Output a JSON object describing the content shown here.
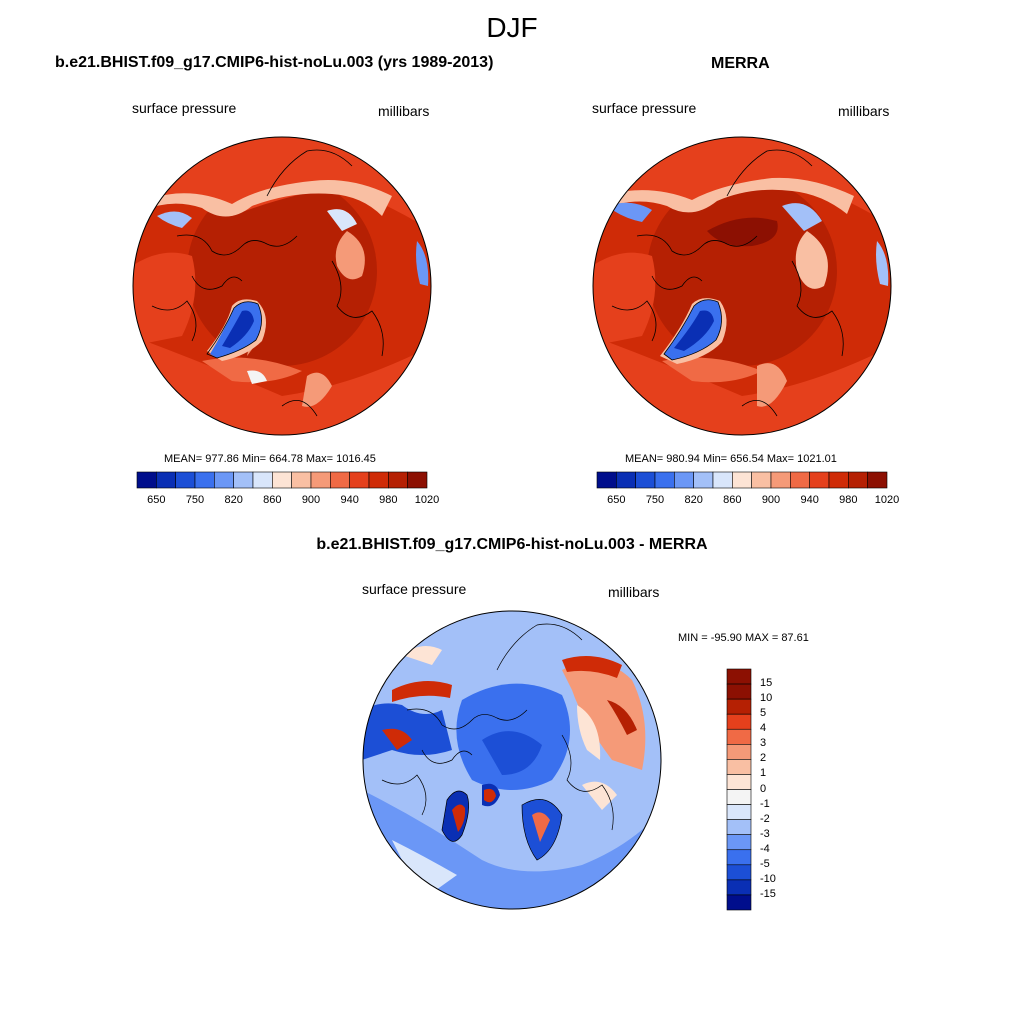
{
  "season": "DJF",
  "panels": [
    {
      "title": "b.e21.BHIST.f09_g17.CMIP6-hist-noLu.003 (yrs 1989-2013)",
      "left_label": "surface pressure",
      "right_label": "millibars",
      "stats": "MEAN= 977.86  Min= 664.78  Max= 1016.45"
    },
    {
      "title": "MERRA",
      "left_label": "surface pressure",
      "right_label": "millibars",
      "stats": "MEAN= 980.94  Min= 656.54  Max= 1021.01"
    },
    {
      "title": "b.e21.BHIST.f09_g17.CMIP6-hist-noLu.003 - MERRA",
      "left_label": "surface pressure",
      "right_label": "millibars",
      "stats": "MIN = -95.90 MAX =  87.61"
    }
  ],
  "colorbar_abs": {
    "colors": [
      "#000e8c",
      "#0a2fb4",
      "#1c4fd6",
      "#3a70ee",
      "#6b97f6",
      "#a3c0f8",
      "#d9e6fb",
      "#fde4d5",
      "#f9bfa3",
      "#f59a78",
      "#f06a45",
      "#e5401c",
      "#cf2b07",
      "#b52003",
      "#8c1002"
    ],
    "tick_labels": [
      "650",
      "750",
      "820",
      "860",
      "900",
      "940",
      "980",
      "1020"
    ]
  },
  "colorbar_diff": {
    "colors": [
      "#000e8c",
      "#0a2fb4",
      "#1c4fd6",
      "#3a70ee",
      "#6b97f6",
      "#a3c0f8",
      "#d9e6fb",
      "#f4f4f4",
      "#fde4d5",
      "#f9bfa3",
      "#f59a78",
      "#f06a45",
      "#e5401c",
      "#b52003",
      "#8c1002"
    ],
    "tick_labels": [
      "15",
      "10",
      "5",
      "4",
      "3",
      "2",
      "1",
      "0",
      "-1",
      "-2",
      "-3",
      "-4",
      "-5",
      "-10",
      "-15"
    ]
  }
}
